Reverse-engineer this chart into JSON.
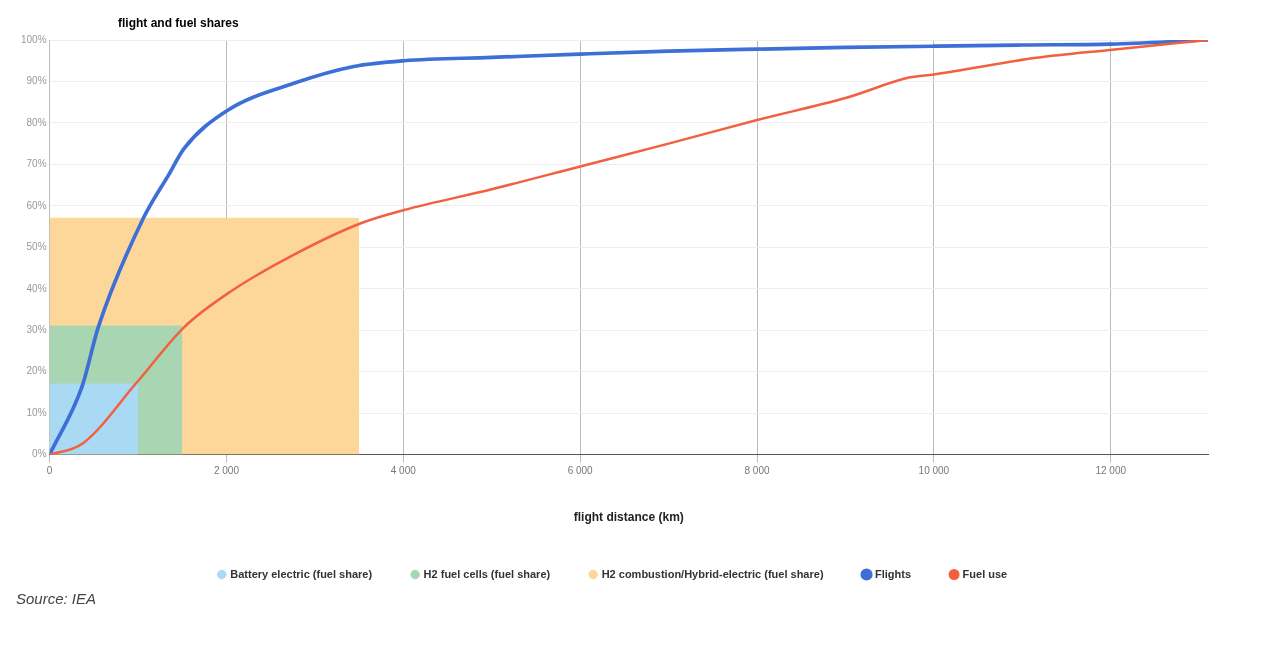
{
  "chart_data": {
    "type": "line",
    "ylabel": "flight and fuel shares",
    "xlabel": "flight distance (km)",
    "xlim": [
      0,
      13100
    ],
    "xticks": [
      0,
      {
        "value": 2000,
        "label": "2 000"
      },
      {
        "value": 4000,
        "label": "4 000"
      },
      {
        "value": 6000,
        "label": "6 000"
      },
      {
        "value": 8000,
        "label": "8 000"
      },
      {
        "value": 10000,
        "label": "10 000"
      },
      {
        "value": 12000,
        "label": "12 000"
      }
    ],
    "ylim": [
      0,
      100
    ],
    "yticks": [
      {
        "value": 0,
        "label": "0%"
      },
      {
        "value": 10,
        "label": "10%"
      },
      {
        "value": 20,
        "label": "20%"
      },
      {
        "value": 30,
        "label": "30%"
      },
      {
        "value": 40,
        "label": "40%"
      },
      {
        "value": 50,
        "label": "50%"
      },
      {
        "value": 60,
        "label": "60%"
      },
      {
        "value": 70,
        "label": "70%"
      },
      {
        "value": 80,
        "label": "80%"
      },
      {
        "value": 90,
        "label": "90%"
      },
      {
        "value": 100,
        "label": "100%"
      }
    ],
    "grid": true,
    "legend": "bottom",
    "marker": "none",
    "series": [
      {
        "name": "Battery electric (fuel share)",
        "type": "area",
        "color": "#a9d9f3",
        "x": [
          0,
          1000
        ],
        "values": [
          17,
          17
        ]
      },
      {
        "name": "H2 fuel cells (fuel share)",
        "type": "area",
        "color": "#a9d6b2",
        "x": [
          0,
          1500
        ],
        "values": [
          31,
          31
        ]
      },
      {
        "name": "H2 combustion/Hybrid-electric (fuel share)",
        "type": "area",
        "color": "#fdd699",
        "x": [
          0,
          3500
        ],
        "values": [
          57,
          57
        ]
      },
      {
        "name": "Flights",
        "type": "line",
        "color": "#3d6fd6",
        "x": [
          0,
          370,
          550,
          1060,
          1350,
          1520,
          2010,
          2770,
          3440,
          4010,
          5000,
          6000,
          7000,
          8000,
          9000,
          10000,
          11000,
          12000,
          13100
        ],
        "values": [
          0,
          16.6,
          30.7,
          57,
          67.6,
          73.8,
          83,
          89.6,
          93.6,
          95,
          95.8,
          96.6,
          97.3,
          97.8,
          98.2,
          98.5,
          98.8,
          99,
          100
        ]
      },
      {
        "name": "Fuel use",
        "type": "line",
        "color": "#f2603f",
        "x": [
          0,
          370,
          990,
          1520,
          2060,
          2770,
          3520,
          4010,
          5000,
          6000,
          7000,
          8000,
          9000,
          9730,
          10000,
          11160,
          11990,
          13100
        ],
        "values": [
          0,
          2.6,
          17.5,
          30.7,
          39.5,
          48.3,
          55.8,
          59,
          64,
          69.5,
          75,
          80.7,
          86,
          91,
          91.7,
          95.7,
          97.6,
          100
        ]
      }
    ],
    "annotations": [
      "Source: IEA"
    ]
  }
}
